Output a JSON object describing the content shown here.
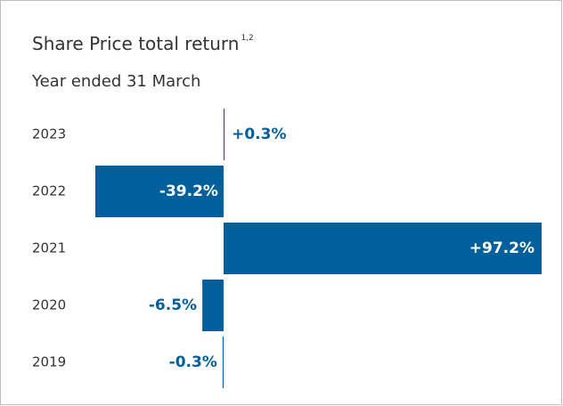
{
  "chart_data": {
    "type": "hbar",
    "title": "Share Price total return",
    "title_superscript": "1,2",
    "subtitle": "Year ended 31 March",
    "categories": [
      "2023",
      "2022",
      "2021",
      "2020",
      "2019"
    ],
    "values": [
      0.3,
      -39.2,
      97.2,
      -6.5,
      -0.3
    ],
    "value_labels": [
      "+0.3%",
      "-39.2%",
      "+97.2%",
      "-6.5%",
      "-0.3%"
    ],
    "colors": [
      "#6b2c6e",
      "#00609c",
      "#00609c",
      "#00609c",
      "#00609c"
    ],
    "label_color": "#00609c"
  }
}
